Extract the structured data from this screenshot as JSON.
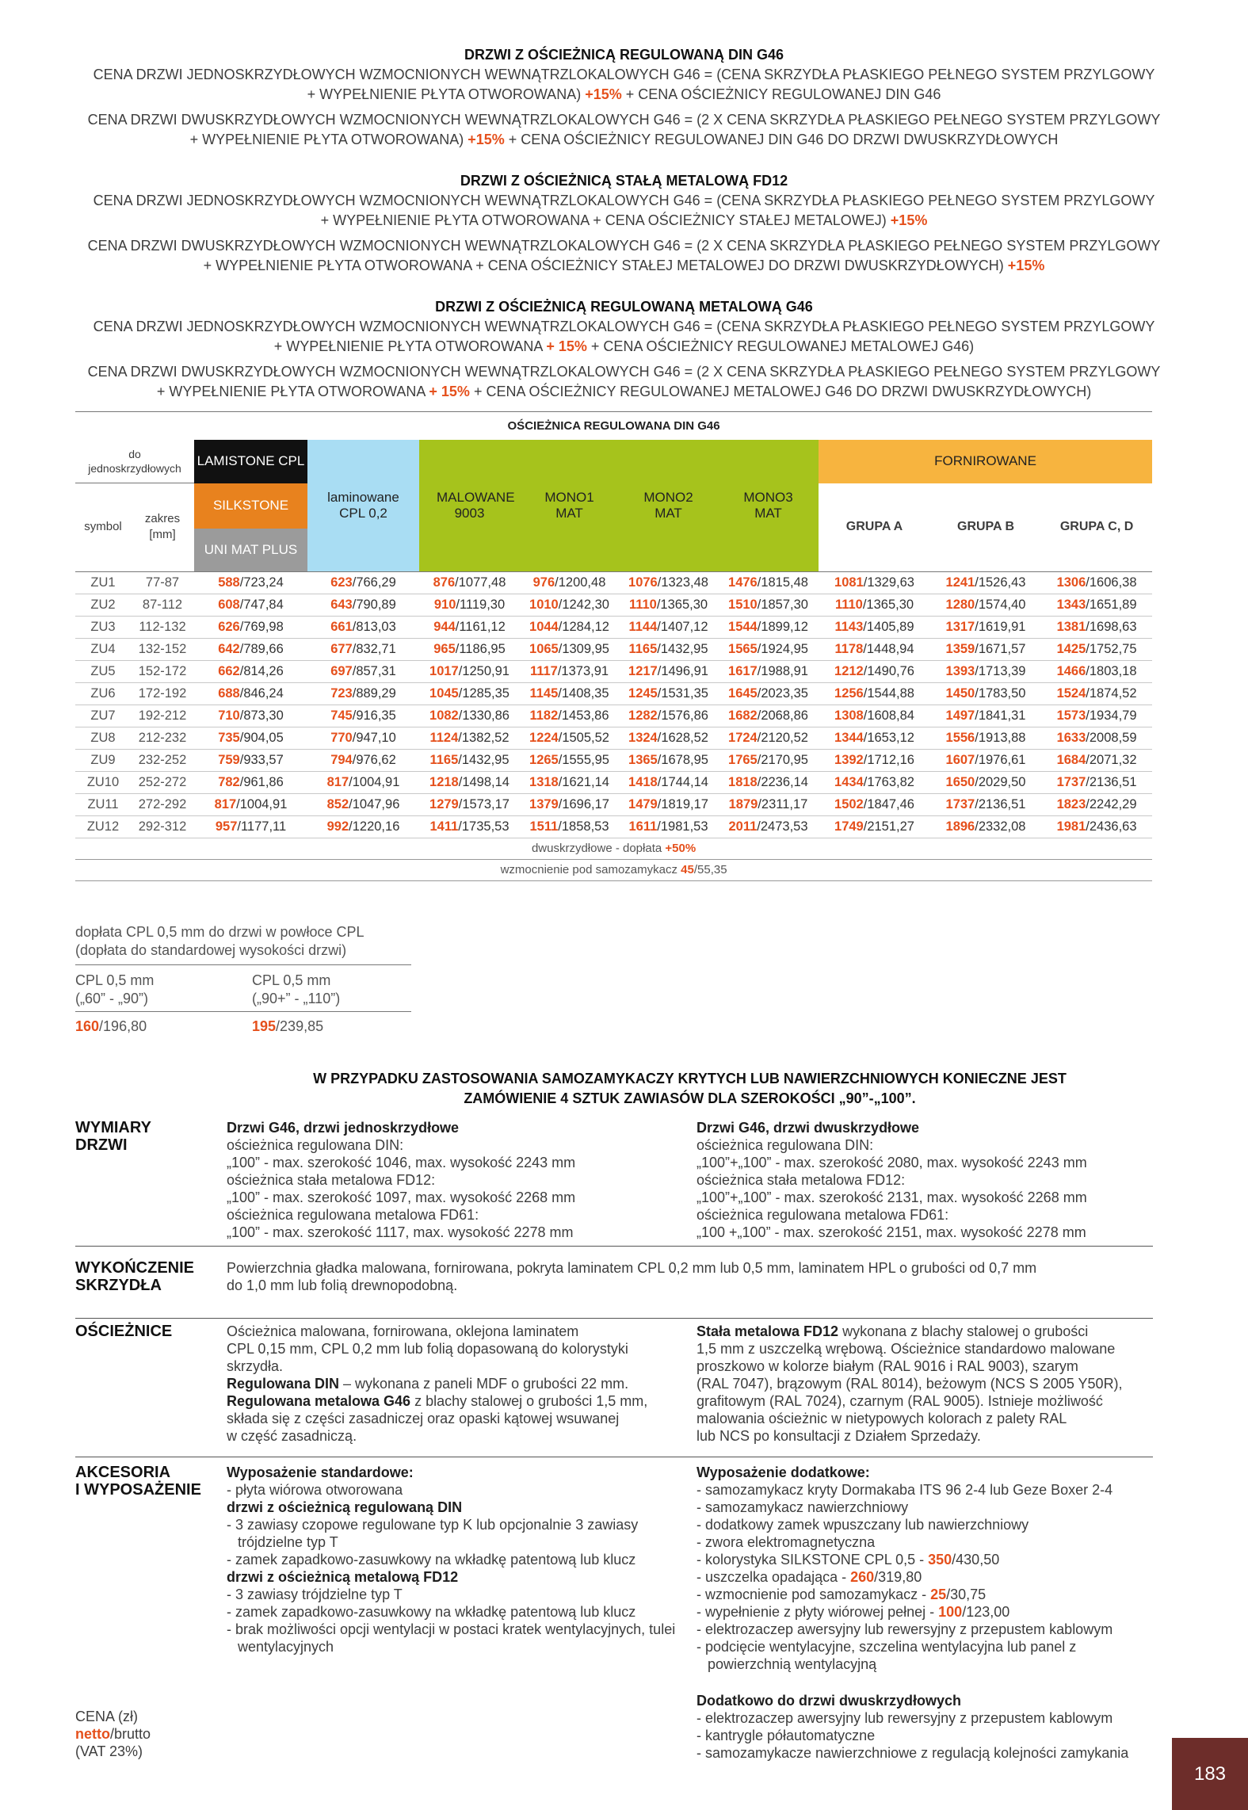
{
  "intro": [
    {
      "heading": "DRZWI Z OŚCIEŻNICĄ REGULOWANĄ DIN G46",
      "paragraphs": [
        [
          "CENA DRZWI JEDNOSKRZYDŁOWYCH WZMOCNIONYCH WEWNĄTRZLOKALOWYCH G46 = (CENA SKRZYDŁA PŁASKIEGO PEŁNEGO SYSTEM PRZYLGOWY",
          [
            "+ WYPEŁNIENIE PŁYTA OTWOROWANA) ",
            {
              "o": "+15%"
            },
            " + CENA OŚCIEŻNICY REGULOWANEJ DIN G46"
          ]
        ],
        [
          "CENA DRZWI DWUSKRZYDŁOWYCH WZMOCNIONYCH WEWNĄTRZLOKALOWYCH G46 = (2 X CENA SKRZYDŁA PŁASKIEGO PEŁNEGO SYSTEM PRZYLGOWY",
          [
            "+ WYPEŁNIENIE PŁYTA OTWOROWANA) ",
            {
              "o": "+15%"
            },
            "  + CENA OŚCIEŻNICY REGULOWANEJ DIN G46 DO DRZWI DWUSKRZYDŁOWYCH"
          ]
        ]
      ]
    },
    {
      "heading": "DRZWI Z OŚCIEŻNICĄ STAŁĄ METALOWĄ FD12",
      "paragraphs": [
        [
          "CENA DRZWI JEDNOSKRZYDŁOWYCH WZMOCNIONYCH WEWNĄTRZLOKALOWYCH G46 = (CENA SKRZYDŁA PŁASKIEGO PEŁNEGO SYSTEM PRZYLGOWY",
          [
            "+ WYPEŁNIENIE PŁYTA OTWOROWANA + CENA OŚCIEŻNICY STAŁEJ METALOWEJ) ",
            {
              "o": "+15%"
            }
          ]
        ],
        [
          "CENA DRZWI DWUSKRZYDŁOWYCH WZMOCNIONYCH WEWNĄTRZLOKALOWYCH G46 = (2 X CENA SKRZYDŁA PŁASKIEGO PEŁNEGO SYSTEM PRZYLGOWY",
          [
            "+ WYPEŁNIENIE PŁYTA OTWOROWANA + CENA OŚCIEŻNICY STAŁEJ METALOWEJ DO DRZWI DWUSKRZYDŁOWYCH) ",
            {
              "o": "+15%"
            }
          ]
        ]
      ]
    },
    {
      "heading": "DRZWI Z OŚCIEŻNICĄ REGULOWANĄ METALOWĄ G46",
      "paragraphs": [
        [
          "CENA DRZWI JEDNOSKRZYDŁOWYCH WZMOCNIONYCH WEWNĄTRZLOKALOWYCH G46 = (CENA SKRZYDŁA PŁASKIEGO PEŁNEGO SYSTEM PRZYLGOWY",
          [
            "+ WYPEŁNIENIE PŁYTA OTWOROWANA ",
            {
              "o": "+ 15%"
            },
            " + CENA OŚCIEŻNICY REGULOWANEJ METALOWEJ G46)"
          ]
        ],
        [
          "CENA DRZWI DWUSKRZYDŁOWYCH WZMOCNIONYCH WEWNĄTRZLOKALOWYCH G46 = (2 X CENA SKRZYDŁA PŁASKIEGO PEŁNEGO SYSTEM PRZYLGOWY",
          [
            "+ WYPEŁNIENIE PŁYTA OTWOROWANA ",
            {
              "o": "+ 15%"
            },
            " + CENA OŚCIEŻNICY REGULOWANEJ METALOWEJ G46 DO DRZWI DWUSKRZYDŁOWYCH)"
          ]
        ]
      ]
    }
  ],
  "price_table": {
    "title": "OŚCIEŻNICA REGULOWANA DIN G46",
    "header": {
      "door_type": "do jednoskrzydłowych",
      "symbol": "symbol",
      "range": "zakres [mm]",
      "lamistone": "LAMISTONE CPL",
      "silkstone": "SILKSTONE",
      "unimat": "UNI MAT PLUS",
      "laminated": "laminowane CPL 0,2",
      "painted": "MALOWANE 9003",
      "mono1": "MONO1 MAT",
      "mono2": "MONO2 MAT",
      "mono3": "MONO3 MAT",
      "veneered": "FORNIROWANE",
      "group_a": "GRUPA A",
      "group_b": "GRUPA B",
      "group_cd": "GRUPA C, D"
    },
    "rows": [
      [
        "ZU1",
        "77-87",
        "588/723,24",
        "623/766,29",
        "876/1077,48",
        "976/1200,48",
        "1076/1323,48",
        "1476/1815,48",
        "1081/1329,63",
        "1241/1526,43",
        "1306/1606,38"
      ],
      [
        "ZU2",
        "87-112",
        "608/747,84",
        "643/790,89",
        "910/1119,30",
        "1010/1242,30",
        "1110/1365,30",
        "1510/1857,30",
        "1110/1365,30",
        "1280/1574,40",
        "1343/1651,89"
      ],
      [
        "ZU3",
        "112-132",
        "626/769,98",
        "661/813,03",
        "944/1161,12",
        "1044/1284,12",
        "1144/1407,12",
        "1544/1899,12",
        "1143/1405,89",
        "1317/1619,91",
        "1381/1698,63"
      ],
      [
        "ZU4",
        "132-152",
        "642/789,66",
        "677/832,71",
        "965/1186,95",
        "1065/1309,95",
        "1165/1432,95",
        "1565/1924,95",
        "1178/1448,94",
        "1359/1671,57",
        "1425/1752,75"
      ],
      [
        "ZU5",
        "152-172",
        "662/814,26",
        "697/857,31",
        "1017/1250,91",
        "1117/1373,91",
        "1217/1496,91",
        "1617/1988,91",
        "1212/1490,76",
        "1393/1713,39",
        "1466/1803,18"
      ],
      [
        "ZU6",
        "172-192",
        "688/846,24",
        "723/889,29",
        "1045/1285,35",
        "1145/1408,35",
        "1245/1531,35",
        "1645/2023,35",
        "1256/1544,88",
        "1450/1783,50",
        "1524/1874,52"
      ],
      [
        "ZU7",
        "192-212",
        "710/873,30",
        "745/916,35",
        "1082/1330,86",
        "1182/1453,86",
        "1282/1576,86",
        "1682/2068,86",
        "1308/1608,84",
        "1497/1841,31",
        "1573/1934,79"
      ],
      [
        "ZU8",
        "212-232",
        "735/904,05",
        "770/947,10",
        "1124/1382,52",
        "1224/1505,52",
        "1324/1628,52",
        "1724/2120,52",
        "1344/1653,12",
        "1556/1913,88",
        "1633/2008,59"
      ],
      [
        "ZU9",
        "232-252",
        "759/933,57",
        "794/976,62",
        "1165/1432,95",
        "1265/1555,95",
        "1365/1678,95",
        "1765/2170,95",
        "1392/1712,16",
        "1607/1976,61",
        "1684/2071,32"
      ],
      [
        "ZU10",
        "252-272",
        "782/961,86",
        "817/1004,91",
        "1218/1498,14",
        "1318/1621,14",
        "1418/1744,14",
        "1818/2236,14",
        "1434/1763,82",
        "1650/2029,50",
        "1737/2136,51"
      ],
      [
        "ZU11",
        "272-292",
        "817/1004,91",
        "852/1047,96",
        "1279/1573,17",
        "1379/1696,17",
        "1479/1819,17",
        "1879/2311,17",
        "1502/1847,46",
        "1737/2136,51",
        "1823/2242,29"
      ],
      [
        "ZU12",
        "292-312",
        "957/1177,11",
        "992/1220,16",
        "1411/1735,53",
        "1511/1858,53",
        "1611/1981,53",
        "2011/2473,53",
        "1749/2151,27",
        "1896/2332,08",
        "1981/2436,63"
      ]
    ],
    "footer": [
      [
        "dwuskrzydłowe - dopłata ",
        {
          "o": "+50%"
        }
      ],
      [
        "wzmocnienie pod samozamykacz  ",
        {
          "o": "45"
        },
        "/55,35"
      ]
    ]
  },
  "cpl_surcharge": {
    "title": [
      "dopłata CPL 0,5 mm do drzwi w powłoce CPL",
      "(dopłata do standardowej wysokości drzwi)"
    ],
    "columns": [
      {
        "label": [
          "CPL 0,5 mm",
          "(„60” - „90”)"
        ],
        "price": "160/196,80"
      },
      {
        "label": [
          "CPL 0,5 mm",
          "(„90+” - „110”)"
        ],
        "price": "195/239,85"
      }
    ]
  },
  "notice": [
    "W PRZYPADKU ZASTOSOWANIA SAMOZAMYKACZY KRYTYCH LUB NAWIERZCHNIOWYCH KONIECZNE JEST",
    "ZAMÓWIENIE 4 SZTUK ZAWIASÓW DLA SZEROKOŚCI „90”-„100”."
  ],
  "specs": [
    {
      "label": [
        "WYMIARY",
        "DRZWI"
      ],
      "col1": [
        [
          {
            "b": "Drzwi G46, drzwi jednoskrzydłowe"
          }
        ],
        "ościeżnica regulowana DIN:",
        "„100” - max. szerokość 1046, max. wysokość 2243 mm",
        "ościeżnica stała metalowa FD12:",
        "„100” - max. szerokość 1097, max. wysokość 2268 mm",
        "ościeżnica regulowana metalowa FD61:",
        "„100” - max. szerokość 1117, max. wysokość 2278 mm"
      ],
      "col2": [
        [
          {
            "b": "Drzwi G46, drzwi dwuskrzydłowe"
          }
        ],
        "ościeżnica regulowana DIN:",
        "„100”+„100” - max. szerokość 2080, max. wysokość 2243 mm",
        "ościeżnica stała metalowa FD12:",
        "„100”+„100” - max. szerokość 2131, max. wysokość 2268 mm",
        "ościeżnica regulowana metalowa FD61:",
        "„100 +„100” - max. szerokość 2151, max. wysokość 2278 mm"
      ]
    },
    {
      "label": [
        "WYKOŃCZENIE",
        "SKRZYDŁA"
      ],
      "col1": [
        "Powierzchnia gładka malowana, fornirowana, pokryta laminatem CPL 0,2 mm lub 0,5 mm, laminatem HPL o grubości od 0,7 mm",
        "do 1,0 mm lub folią drewnopodobną."
      ]
    },
    {
      "label": [
        "OŚCIEŻNICE"
      ],
      "col1": [
        "Ościeżnica malowana, fornirowana, oklejona laminatem",
        "CPL 0,15 mm, CPL 0,2 mm lub folią dopasowaną do kolorystyki",
        "skrzydła.",
        [
          {
            "b": "Regulowana DIN"
          },
          " – wykonana z paneli MDF o grubości 22 mm."
        ],
        [
          {
            "b": "Regulowana metalowa G46"
          },
          " z blachy stalowej o grubości 1,5 mm,"
        ],
        "składa się z części zasadniczej oraz opaski kątowej wsuwanej",
        "w część zasadniczą."
      ],
      "col2": [
        [
          {
            "b": "Stała metalowa FD12"
          },
          " wykonana z blachy stalowej o grubości"
        ],
        "1,5 mm z uszczelką wrębową. Ościeżnice standardowo malowane",
        "proszkowo w kolorze białym (RAL 9016 i RAL 9003), szarym",
        "(RAL 7047), brązowym (RAL 8014), beżowym (NCS S 2005 Y50R),",
        "grafitowym (RAL 7024), czarnym (RAL 9005). Istnieje możliwość",
        "malowania ościeżnic w nietypowych kolorach z palety RAL",
        "lub NCS po konsultacji z Działem Sprzedaży."
      ]
    },
    {
      "label": [
        "AKCESORIA",
        "I WYPOSAŻENIE"
      ],
      "col1": [
        [
          {
            "b": "Wyposażenie standardowe:"
          }
        ],
        "- płyta wiórowa otworowana",
        [
          {
            "b": "drzwi z ościeżnicą regulowaną DIN"
          }
        ],
        "- 3 zawiasy czopowe regulowane typ K lub opcjonalnie 3 zawiasy trójdzielne typ T",
        "- zamek zapadkowo-zasuwkowy na wkładkę patentową lub klucz",
        [
          {
            "b": "drzwi z ościeżnicą metalową FD12"
          }
        ],
        "- 3 zawiasy trójdzielne typ T",
        "- zamek zapadkowo-zasuwkowy na wkładkę patentową lub klucz",
        "- brak możliwości opcji wentylacji w postaci kratek wentylacyjnych, tulei wentylacyjnych"
      ],
      "col2": [
        [
          {
            "b": "Wyposażenie dodatkowe:"
          }
        ],
        "- samozamykacz kryty Dormakaba ITS 96 2-4 lub Geze Boxer 2-4",
        "- samozamykacz nawierzchniowy",
        "- dodatkowy zamek wpuszczany lub nawierzchniowy",
        "- zwora elektromagnetyczna",
        [
          "- kolorystyka SILKSTONE CPL 0,5 - ",
          {
            "o": "350"
          },
          "/430,50"
        ],
        [
          "- uszczelka opadająca - ",
          {
            "o": "260"
          },
          "/319,80"
        ],
        [
          "- wzmocnienie pod samozamykacz - ",
          {
            "o": "25"
          },
          "/30,75"
        ],
        [
          "- wypełnienie z płyty wiórowej pełnej - ",
          {
            "o": "100"
          },
          "/123,00"
        ],
        "- elektrozaczep awersyjny lub rewersyjny z przepustem kablowym",
        "- podcięcie wentylacyjne, szczelina wentylacyjna lub panel z powierzchnią wentylacyjną"
      ],
      "extra": {
        "title": "Dodatkowo do drzwi dwuskrzydłowych",
        "lines": [
          "- elektrozaczep awersyjny lub rewersyjny z przepustem kablowym",
          "- kantrygle półautomatyczne",
          "- samozamykacze nawierzchniowe z regulacją kolejności zamykania"
        ]
      }
    }
  ],
  "price_legend": [
    "CENA (zł)",
    [
      {
        "o": "netto"
      },
      "/brutto"
    ],
    "(VAT 23%)"
  ],
  "page_number": "183"
}
